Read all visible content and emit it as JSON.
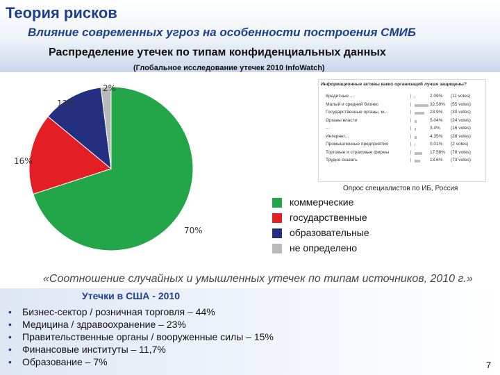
{
  "header": {
    "title": "Теория рисков",
    "subtitle": "Влияние современных угроз на особенности построения СМИБ",
    "chart_title": "Распределение утечек по типам конфиденциальных данных",
    "chart_subtitle": "(Глобальное исследование утечек 2010 InfoWatch)"
  },
  "chart_data": [
    {
      "type": "pie",
      "title": "Распределение утечек по типам конфиденциальных данных",
      "subtitle": "(Глобальное исследование утечек 2010 InfoWatch)",
      "categories": [
        "коммерческие",
        "государственные",
        "образовательные",
        "не определено"
      ],
      "values": [
        70,
        16,
        12,
        2
      ],
      "labels": [
        "70%",
        "16%",
        "12%",
        "2%"
      ],
      "colors": [
        "#23a64a",
        "#e31e24",
        "#24307f",
        "#b9b9b9"
      ],
      "legend_position": "right"
    },
    {
      "type": "bar",
      "title": "Информационные активы каких организаций лучше защищены?",
      "caption": "Опрос специалистов по ИБ, Россия",
      "categories": [
        "Кредитные ...",
        "Малый и средний бизнес",
        "Государственные органы, м...",
        "Органы власти",
        "...",
        "Интернет...",
        "Промышленные предприятия",
        "Торговые и страховые фирмы",
        "Трудно сказать"
      ],
      "values": [
        2.09,
        32.59,
        23.9,
        5.04,
        3.4,
        4.35,
        0.01,
        17.58,
        13.6
      ],
      "value_labels": [
        "2.09%",
        "32.59%",
        "23.9%",
        "5.04%",
        "3.4%",
        "4.35%",
        "0.01%",
        "17.58%",
        "13.6%"
      ],
      "votes": [
        "(11 votes)",
        "(55 votes)",
        "(30 votes)",
        "(24 votes)",
        "(16 votes)",
        "(28 votes)",
        "(2 votes)",
        "(78 votes)",
        "(73 votes)"
      ]
    }
  ],
  "legend": {
    "items": [
      {
        "label": "коммерческие",
        "color": "#23a64a"
      },
      {
        "label": "государственные",
        "color": "#e31e24"
      },
      {
        "label": "образовательные",
        "color": "#24307f"
      },
      {
        "label": "не определено",
        "color": "#b9b9b9"
      }
    ]
  },
  "quote": "«Соотношение случайных и умышленных утечек по типам источников, 2010 г.»",
  "usa": {
    "title": "Утечки в США - 2010",
    "items": [
      "Бизнес-сектор / розничная торговля – 44%",
      "Медицина / здравоохранение – 23%",
      "Правительственные органы / вооруженные силы – 15%",
      "Финансовые институты – 11,7%",
      "Образование – 7%"
    ]
  },
  "page_number": "7"
}
